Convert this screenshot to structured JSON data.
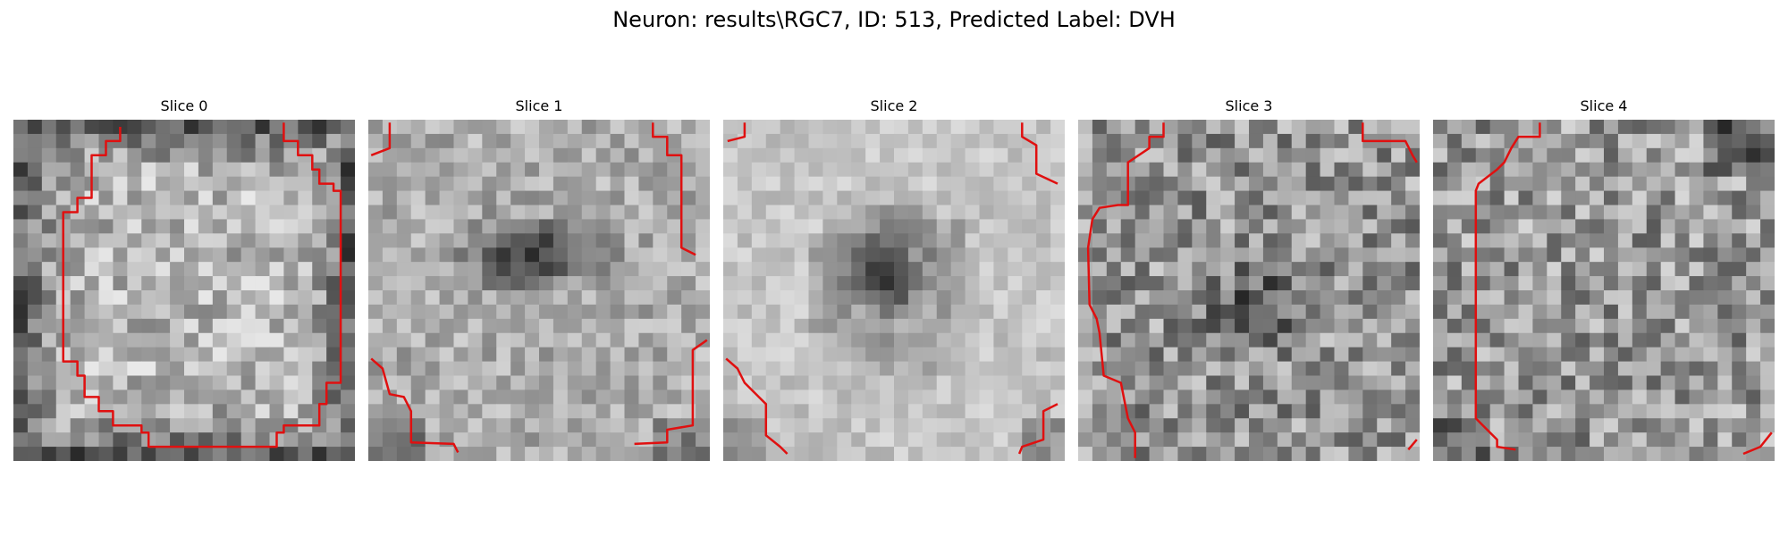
{
  "figure": {
    "title": "Neuron: results\\RGC7, ID: 513, Predicted Label: DVH"
  },
  "panels": [
    {
      "label": "Slice 0"
    },
    {
      "label": "Slice 1"
    },
    {
      "label": "Slice 2"
    },
    {
      "label": "Slice 3"
    },
    {
      "label": "Slice 4"
    }
  ],
  "colors": {
    "contour": "#e01010",
    "colormap": "gray"
  }
}
